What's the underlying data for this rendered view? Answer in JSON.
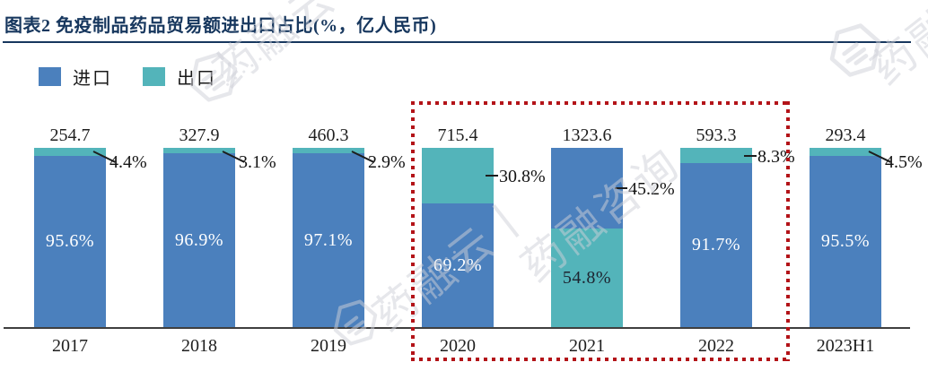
{
  "title": "图表2 免疫制品药品贸易额进出口占比(%，亿人民币)",
  "legend": [
    {
      "label": "进口",
      "color": "#4b80bd"
    },
    {
      "label": "出口",
      "color": "#53b4ba"
    }
  ],
  "colors": {
    "import_blue": "#4b80bd",
    "export_teal": "#53b4ba",
    "title_navy": "#17375e",
    "axis_dark": "#3f3f3f",
    "text_dark": "#1f1f1f",
    "inside_dark_label": "#1d2430",
    "inside_white_label": "#ffffff",
    "highlight_red": "#b31318",
    "watermark_gray": "#cfd0d8"
  },
  "chart_data": {
    "type": "bar",
    "stacked": true,
    "percent_stacked": true,
    "title": "图表2 免疫制品药品贸易额进出口占比(%，亿人民币)",
    "unit_note": "(%，亿人民币)",
    "categories": [
      "2017",
      "2018",
      "2019",
      "2020",
      "2021",
      "2022",
      "2023H1"
    ],
    "totals": [
      254.7,
      327.9,
      460.3,
      715.4,
      1323.6,
      593.3,
      293.4
    ],
    "series": [
      {
        "name": "进口",
        "values": [
          95.6,
          96.9,
          97.1,
          69.2,
          45.2,
          91.7,
          95.5
        ]
      },
      {
        "name": "出口",
        "values": [
          4.4,
          3.1,
          2.9,
          30.8,
          54.8,
          8.3,
          4.5
        ]
      }
    ],
    "ylim": [
      0,
      100
    ],
    "grid": false,
    "legend_position": "top-left",
    "highlighted_categories": [
      "2020",
      "2021",
      "2022"
    ],
    "bars": [
      {
        "year": "2017",
        "total": "254.7",
        "segments": [
          {
            "series": "出口",
            "pct": 4.4,
            "label": "4.4%",
            "label_mode": "callout_slant"
          },
          {
            "series": "进口",
            "pct": 95.6,
            "label": "95.6%",
            "label_mode": "inside",
            "label_color": "white"
          }
        ]
      },
      {
        "year": "2018",
        "total": "327.9",
        "segments": [
          {
            "series": "出口",
            "pct": 3.1,
            "label": "3.1%",
            "label_mode": "callout_slant"
          },
          {
            "series": "进口",
            "pct": 96.9,
            "label": "96.9%",
            "label_mode": "inside",
            "label_color": "white"
          }
        ]
      },
      {
        "year": "2019",
        "total": "460.3",
        "segments": [
          {
            "series": "出口",
            "pct": 2.9,
            "label": "2.9%",
            "label_mode": "callout_slant"
          },
          {
            "series": "进口",
            "pct": 97.1,
            "label": "97.1%",
            "label_mode": "inside",
            "label_color": "white"
          }
        ]
      },
      {
        "year": "2020",
        "total": "715.4",
        "segments": [
          {
            "series": "出口",
            "pct": 30.8,
            "label": "30.8%",
            "label_mode": "callout_dash"
          },
          {
            "series": "进口",
            "pct": 69.2,
            "label": "69.2%",
            "label_mode": "inside",
            "label_color": "white"
          }
        ]
      },
      {
        "year": "2021",
        "total": "1323.6",
        "segments": [
          {
            "series": "进口",
            "pct": 45.2,
            "label": "45.2%",
            "label_mode": "callout_dash"
          },
          {
            "series": "出口",
            "pct": 54.8,
            "label": "54.8%",
            "label_mode": "inside",
            "label_color": "dark"
          }
        ]
      },
      {
        "year": "2022",
        "total": "593.3",
        "segments": [
          {
            "series": "出口",
            "pct": 8.3,
            "label": "8.3%",
            "label_mode": "callout_dash"
          },
          {
            "series": "进口",
            "pct": 91.7,
            "label": "91.7%",
            "label_mode": "inside",
            "label_color": "white"
          }
        ]
      },
      {
        "year": "2023H1",
        "total": "293.4",
        "segments": [
          {
            "series": "出口",
            "pct": 4.5,
            "label": "4.5%",
            "label_mode": "callout_slant"
          },
          {
            "series": "进口",
            "pct": 95.5,
            "label": "95.5%",
            "label_mode": "inside",
            "label_color": "white"
          }
        ]
      }
    ]
  },
  "watermarks": [
    {
      "text": "药融云"
    },
    {
      "text": "药融"
    },
    {
      "text": "药融云丨"
    },
    {
      "text": "药融咨询"
    },
    {
      "text": "•••••••••"
    }
  ]
}
